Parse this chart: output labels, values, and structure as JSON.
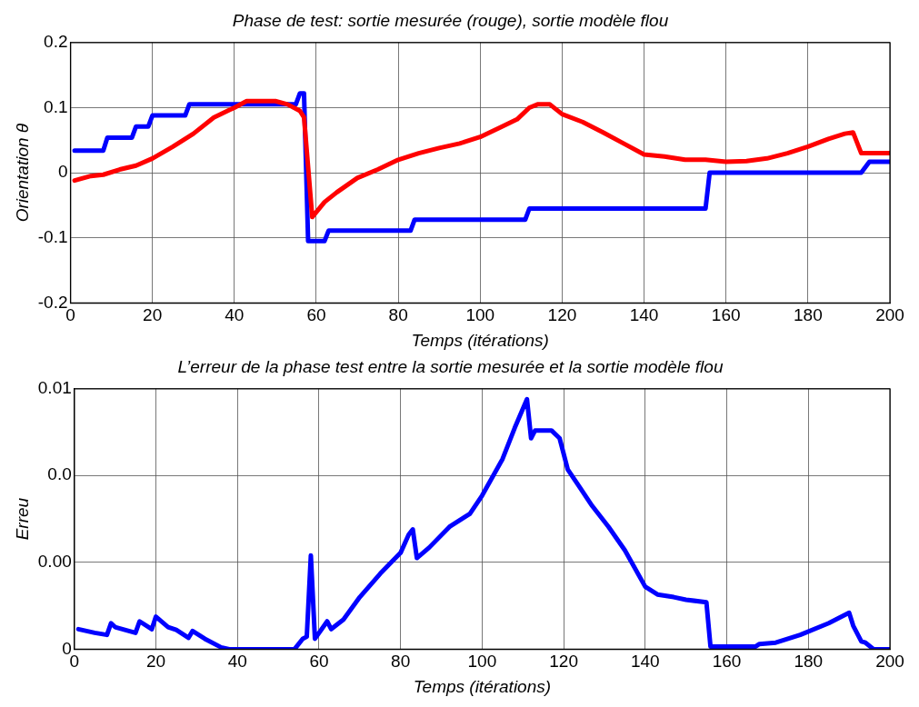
{
  "chart_data": [
    {
      "type": "line",
      "title": "Phase de test: sortie mesurée (rouge), sortie modèle flou",
      "xlabel": "Temps (itérations)",
      "ylabel": "Orientation θ",
      "xlim": [
        0,
        200
      ],
      "xticks": [
        0,
        20,
        40,
        60,
        80,
        100,
        120,
        140,
        160,
        180,
        200
      ],
      "ylim": [
        -0.2,
        0.2
      ],
      "yticks": [
        -0.2,
        -0.1,
        0,
        0.1,
        0.2
      ],
      "grid": true,
      "legend": false,
      "series": [
        {
          "color": "#ff0000",
          "x": [
            1,
            5,
            8,
            12,
            16,
            20,
            25,
            30,
            35,
            40,
            43,
            50,
            53,
            56,
            57,
            59,
            62,
            65,
            70,
            75,
            80,
            85,
            90,
            95,
            100,
            105,
            109,
            112,
            114,
            117,
            120,
            125,
            130,
            135,
            140,
            145,
            150,
            155,
            160,
            165,
            170,
            175,
            180,
            185,
            189,
            191,
            193,
            200
          ],
          "values": [
            -0.012,
            -0.005,
            -0.003,
            0.005,
            0.011,
            0.022,
            0.04,
            0.06,
            0.085,
            0.1,
            0.11,
            0.11,
            0.105,
            0.095,
            0.085,
            -0.068,
            -0.045,
            -0.03,
            -0.008,
            0.005,
            0.02,
            0.03,
            0.038,
            0.045,
            0.055,
            0.07,
            0.082,
            0.1,
            0.105,
            0.105,
            0.09,
            0.078,
            0.062,
            0.045,
            0.028,
            0.025,
            0.02,
            0.02,
            0.017,
            0.018,
            0.022,
            0.03,
            0.04,
            0.052,
            0.06,
            0.062,
            0.03,
            0.03
          ]
        },
        {
          "color": "#0000ff",
          "x": [
            1,
            8,
            9,
            15,
            16,
            19,
            20,
            28,
            29,
            55,
            56,
            57,
            58,
            62,
            63,
            83,
            84,
            111,
            112,
            155,
            156,
            193,
            195,
            200
          ],
          "values": [
            0.034,
            0.034,
            0.054,
            0.054,
            0.071,
            0.071,
            0.088,
            0.088,
            0.105,
            0.105,
            0.122,
            0.122,
            -0.105,
            -0.105,
            -0.089,
            -0.089,
            -0.072,
            -0.072,
            -0.055,
            -0.055,
            0,
            0,
            0.017,
            0.017
          ]
        }
      ]
    },
    {
      "type": "line",
      "title": "L’erreur de la phase test entre la sortie mesurée et la sortie modèle flou",
      "xlabel": "Temps (itérations)",
      "ylabel": "Erreu",
      "xlim": [
        0,
        200
      ],
      "xticks": [
        0,
        20,
        40,
        60,
        80,
        100,
        120,
        140,
        160,
        180,
        200
      ],
      "ylim": [
        0,
        0.01
      ],
      "yticks": [
        0,
        {
          "value": 0.00333,
          "label": "0.00"
        },
        {
          "value": 0.00667,
          "label": "0.0"
        },
        0.01
      ],
      "grid": true,
      "legend": false,
      "series": [
        {
          "color": "#0000ff",
          "x": [
            1,
            5,
            8,
            9,
            10,
            15,
            16,
            19,
            20,
            23,
            25,
            28,
            29,
            32,
            36,
            38,
            54,
            56,
            57,
            58,
            59,
            62,
            63,
            66,
            70,
            75,
            80,
            82,
            83,
            84,
            87,
            92,
            97,
            100,
            105,
            108,
            111,
            112,
            113,
            117,
            119,
            121,
            124,
            127,
            131,
            135,
            140,
            143,
            147,
            150,
            155,
            156,
            167,
            168,
            172,
            178,
            185,
            190,
            191,
            193,
            194,
            196,
            200
          ],
          "values": [
            0.00077,
            0.00063,
            0.00055,
            0.001,
            0.00085,
            0.00063,
            0.00107,
            0.00077,
            0.00125,
            0.00085,
            0.00074,
            0.00044,
            0.0007,
            0.0004,
            7e-05,
            0,
            0,
            0.0004,
            0.00048,
            0.0036,
            0.0004,
            0.00107,
            0.00077,
            0.00114,
            0.002,
            0.0029,
            0.0037,
            0.0044,
            0.0046,
            0.0035,
            0.0039,
            0.0047,
            0.0052,
            0.0059,
            0.0073,
            0.0085,
            0.0096,
            0.0081,
            0.0084,
            0.0084,
            0.0081,
            0.0069,
            0.0062,
            0.0055,
            0.0047,
            0.0038,
            0.0024,
            0.0021,
            0.002,
            0.0019,
            0.0018,
            0.0001,
            0.0001,
            0.0002,
            0.00025,
            0.00055,
            0.001,
            0.0014,
            0.0009,
            0.0003,
            0.00025,
            0,
            0
          ]
        }
      ]
    }
  ]
}
